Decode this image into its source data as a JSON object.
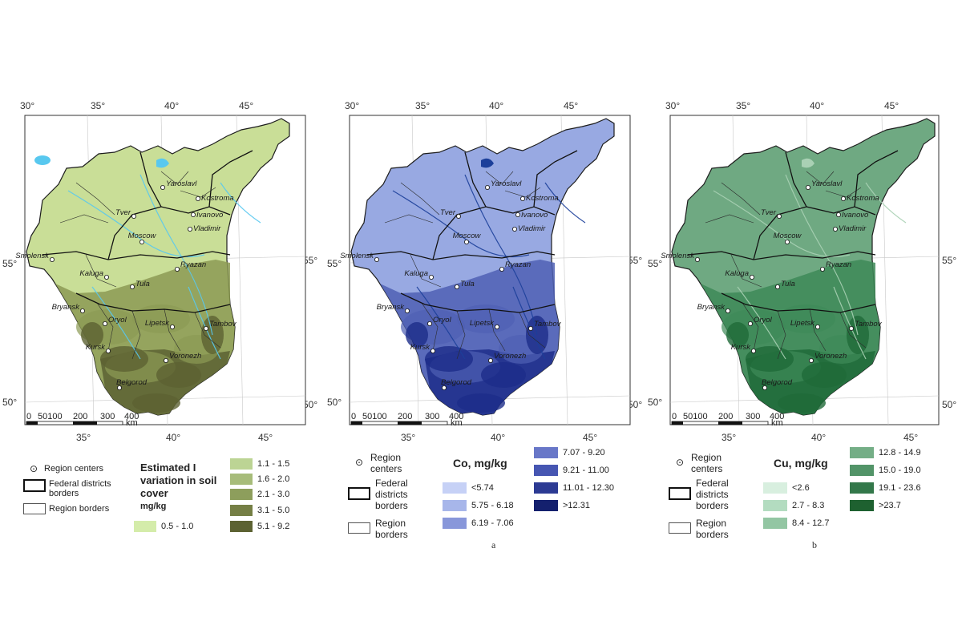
{
  "panels": [
    {
      "id": "iodine",
      "top_ticks": [
        "30°",
        "35°",
        "40°",
        "45°"
      ],
      "bottom_ticks": [
        "35°",
        "40°",
        "45°"
      ],
      "left_lat": [
        "55°",
        "50°"
      ],
      "right_lat": [
        "55°",
        "50°"
      ],
      "colors": {
        "base": "#c9de97",
        "mid": "#8c9a54",
        "dark": "#5c6232",
        "water": "#58c8ef",
        "border": "#1d1d1d"
      },
      "legend": {
        "centers_label": "Region centers",
        "federal_label": "Federal districts borders",
        "region_label": "Region borders",
        "title": "Estimated I variation in soil cover",
        "unit": "mg/kg",
        "classes": [
          {
            "label": "0.5 - 1.0",
            "color": "#d4ecaa"
          },
          {
            "label": "1.1 - 1.5",
            "color": "#bcd494"
          },
          {
            "label": "1.6 - 2.0",
            "color": "#a7bc7a"
          },
          {
            "label": "2.1 - 3.0",
            "color": "#8d9e5c"
          },
          {
            "label": "3.1 - 5.0",
            "color": "#757f45"
          },
          {
            "label": "5.1 - 9.2",
            "color": "#5c6232"
          }
        ]
      },
      "figure_letter": ""
    },
    {
      "id": "cobalt",
      "top_ticks": [
        "30°",
        "35°",
        "40°",
        "45°"
      ],
      "bottom_ticks": [
        "35°",
        "40°",
        "45°"
      ],
      "left_lat": [
        "55°",
        "50°"
      ],
      "right_lat": [
        "55°",
        "50°"
      ],
      "colors": {
        "base": "#98a9e2",
        "mid": "#4f60b4",
        "dark": "#1d2d8a",
        "water": "#1c3f9a",
        "border": "#1d1d1d"
      },
      "legend": {
        "centers_label": "Region centers",
        "federal_label": "Federal districts borders",
        "region_label": "Region borders",
        "title": "Co, mg/kg",
        "unit": "",
        "classes": [
          {
            "label": "<5.74",
            "color": "#c6d1f6"
          },
          {
            "label": "5.75 - 6.18",
            "color": "#a7b6ea"
          },
          {
            "label": "6.19 - 7.06",
            "color": "#8897da"
          },
          {
            "label": "7.07 - 9.20",
            "color": "#6877c8"
          },
          {
            "label": "9.21 - 11.00",
            "color": "#4656b2"
          },
          {
            "label": "11.01 - 12.30",
            "color": "#2c3a93"
          },
          {
            "label": ">12.31",
            "color": "#14206e"
          }
        ]
      },
      "figure_letter": "a"
    },
    {
      "id": "copper",
      "top_ticks": [
        "30°",
        "35°",
        "40°",
        "45°"
      ],
      "bottom_ticks": [
        "35°",
        "40°",
        "45°"
      ],
      "left_lat": [
        "55°",
        "50°"
      ],
      "right_lat": [
        "55°",
        "50°"
      ],
      "colors": {
        "base": "#6fa982",
        "mid": "#3e8a58",
        "dark": "#1f6a38",
        "water": "#a9d0b4",
        "border": "#1d1d1d"
      },
      "legend": {
        "centers_label": "Region centers",
        "federal_label": "Federal districts borders",
        "region_label": "Region borders",
        "title": "Cu, mg/kg",
        "unit": "",
        "classes": [
          {
            "label": "<2.6",
            "color": "#d8efdf"
          },
          {
            "label": "2.7 - 8.3",
            "color": "#b3dcc0"
          },
          {
            "label": "8.4 - 12.7",
            "color": "#93c6a3"
          },
          {
            "label": "12.8 - 14.9",
            "color": "#74ae86"
          },
          {
            "label": "15.0 - 19.0",
            "color": "#529468"
          },
          {
            "label": "19.1 - 23.6",
            "color": "#33784a"
          },
          {
            "label": ">23.7",
            "color": "#1e6130"
          }
        ]
      },
      "figure_letter": "b"
    }
  ],
  "cities": [
    "Yaroslavl",
    "Kostroma",
    "Ivanovo",
    "Tver",
    "Vladimir",
    "Moscow",
    "Smolensk",
    "Ryazan",
    "Kaluga",
    "Tula",
    "Bryansk",
    "Oryol",
    "Lipetsk",
    "Tambov",
    "Kursk",
    "Voronezh",
    "Belgorod"
  ],
  "scale_bar": {
    "labels": [
      "0",
      "50100",
      "200",
      "300",
      "400"
    ],
    "unit": "km"
  }
}
